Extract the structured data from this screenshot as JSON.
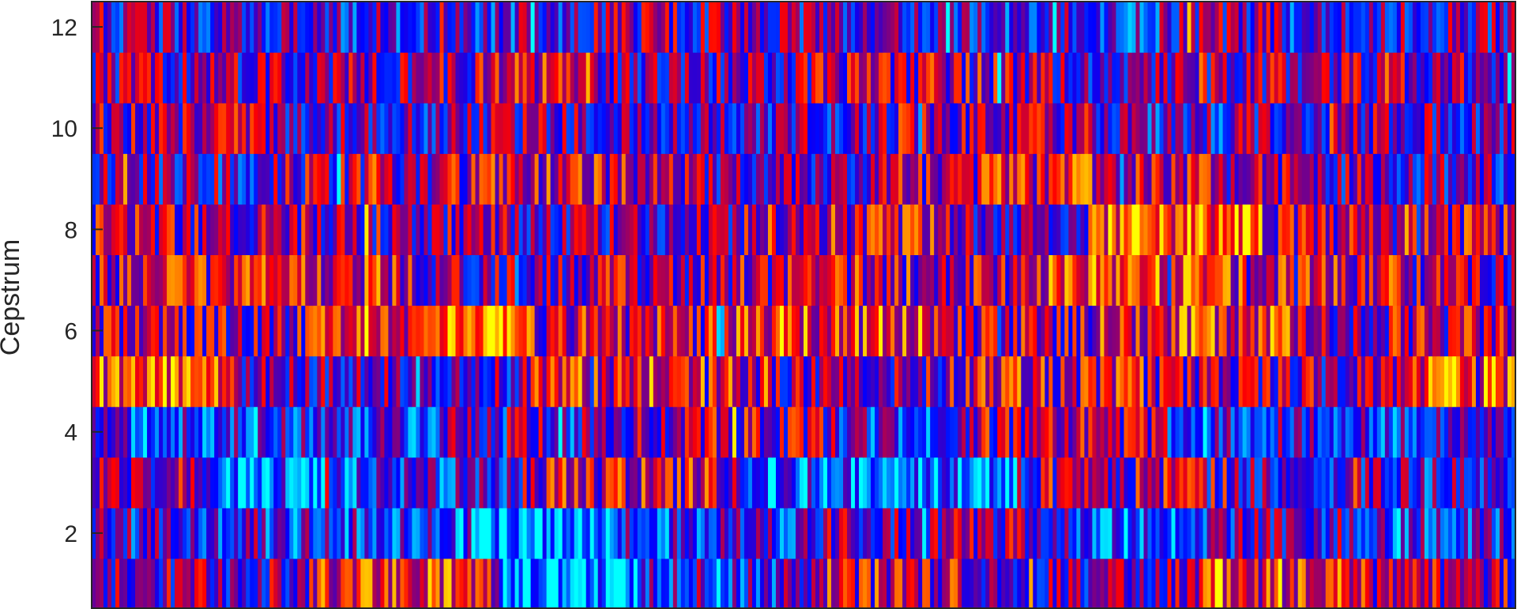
{
  "chart_data": {
    "type": "heatmap",
    "title": "",
    "xlabel": "",
    "ylabel": "Cepstrum",
    "y_rows": [
      1,
      2,
      3,
      4,
      5,
      6,
      7,
      8,
      9,
      10,
      11,
      12
    ],
    "yticks": [
      2,
      4,
      6,
      8,
      10,
      12
    ],
    "yticklabels": [
      "2",
      "4",
      "6",
      "8",
      "10",
      "12"
    ],
    "ylim": [
      0.5,
      12.5
    ],
    "xticks": [],
    "frames": 360,
    "value_range": [
      0,
      1
    ],
    "colormap": [
      "#00ffff",
      "#0066ff",
      "#0000ff",
      "#800080",
      "#ff0000",
      "#ff8000",
      "#ffff00"
    ],
    "grid": false,
    "legend": "none",
    "coefficient_row_profiles": [
      {
        "row": 1,
        "segments": [
          [
            0,
            0.45
          ],
          [
            0.15,
            0.7
          ],
          [
            0.28,
            0.12
          ],
          [
            0.38,
            0.35
          ],
          [
            0.5,
            0.6
          ],
          [
            0.62,
            0.4
          ],
          [
            0.75,
            0.65
          ],
          [
            0.9,
            0.55
          ]
        ]
      },
      {
        "row": 2,
        "segments": [
          [
            0,
            0.35
          ],
          [
            0.12,
            0.3
          ],
          [
            0.25,
            0.08
          ],
          [
            0.36,
            0.3
          ],
          [
            0.5,
            0.45
          ],
          [
            0.66,
            0.2
          ],
          [
            0.78,
            0.4
          ],
          [
            0.9,
            0.3
          ]
        ]
      },
      {
        "row": 3,
        "segments": [
          [
            0,
            0.55
          ],
          [
            0.08,
            0.2
          ],
          [
            0.2,
            0.3
          ],
          [
            0.3,
            0.6
          ],
          [
            0.45,
            0.2
          ],
          [
            0.55,
            0.15
          ],
          [
            0.65,
            0.55
          ],
          [
            0.8,
            0.35
          ]
        ]
      },
      {
        "row": 4,
        "segments": [
          [
            0,
            0.25
          ],
          [
            0.12,
            0.3
          ],
          [
            0.25,
            0.45
          ],
          [
            0.38,
            0.55
          ],
          [
            0.52,
            0.3
          ],
          [
            0.6,
            0.55
          ],
          [
            0.75,
            0.35
          ],
          [
            0.9,
            0.3
          ]
        ]
      },
      {
        "row": 5,
        "segments": [
          [
            0,
            0.75
          ],
          [
            0.1,
            0.45
          ],
          [
            0.22,
            0.4
          ],
          [
            0.3,
            0.7
          ],
          [
            0.45,
            0.5
          ],
          [
            0.6,
            0.6
          ],
          [
            0.75,
            0.5
          ],
          [
            0.92,
            0.75
          ]
        ]
      },
      {
        "row": 6,
        "segments": [
          [
            0,
            0.55
          ],
          [
            0.15,
            0.7
          ],
          [
            0.24,
            0.85
          ],
          [
            0.3,
            0.6
          ],
          [
            0.45,
            0.7
          ],
          [
            0.6,
            0.55
          ],
          [
            0.7,
            0.7
          ],
          [
            0.85,
            0.55
          ]
        ]
      },
      {
        "row": 7,
        "segments": [
          [
            0,
            0.6
          ],
          [
            0.1,
            0.65
          ],
          [
            0.22,
            0.45
          ],
          [
            0.35,
            0.55
          ],
          [
            0.5,
            0.6
          ],
          [
            0.65,
            0.7
          ],
          [
            0.8,
            0.6
          ],
          [
            0.92,
            0.5
          ]
        ]
      },
      {
        "row": 8,
        "segments": [
          [
            0,
            0.55
          ],
          [
            0.15,
            0.5
          ],
          [
            0.3,
            0.45
          ],
          [
            0.45,
            0.6
          ],
          [
            0.6,
            0.45
          ],
          [
            0.7,
            0.8
          ],
          [
            0.82,
            0.55
          ],
          [
            0.92,
            0.6
          ]
        ]
      },
      {
        "row": 9,
        "segments": [
          [
            0,
            0.4
          ],
          [
            0.12,
            0.5
          ],
          [
            0.25,
            0.6
          ],
          [
            0.4,
            0.45
          ],
          [
            0.55,
            0.55
          ],
          [
            0.62,
            0.65
          ],
          [
            0.78,
            0.5
          ],
          [
            0.9,
            0.4
          ]
        ]
      },
      {
        "row": 10,
        "segments": [
          [
            0,
            0.5
          ],
          [
            0.12,
            0.4
          ],
          [
            0.25,
            0.45
          ],
          [
            0.4,
            0.4
          ],
          [
            0.55,
            0.5
          ],
          [
            0.7,
            0.35
          ],
          [
            0.8,
            0.45
          ],
          [
            0.92,
            0.4
          ]
        ]
      },
      {
        "row": 11,
        "segments": [
          [
            0,
            0.45
          ],
          [
            0.15,
            0.5
          ],
          [
            0.27,
            0.65
          ],
          [
            0.35,
            0.45
          ],
          [
            0.5,
            0.55
          ],
          [
            0.65,
            0.45
          ],
          [
            0.8,
            0.5
          ],
          [
            0.92,
            0.45
          ]
        ]
      },
      {
        "row": 12,
        "segments": [
          [
            0,
            0.4
          ],
          [
            0.15,
            0.35
          ],
          [
            0.3,
            0.45
          ],
          [
            0.45,
            0.4
          ],
          [
            0.6,
            0.35
          ],
          [
            0.75,
            0.45
          ],
          [
            0.9,
            0.4
          ]
        ]
      }
    ]
  }
}
